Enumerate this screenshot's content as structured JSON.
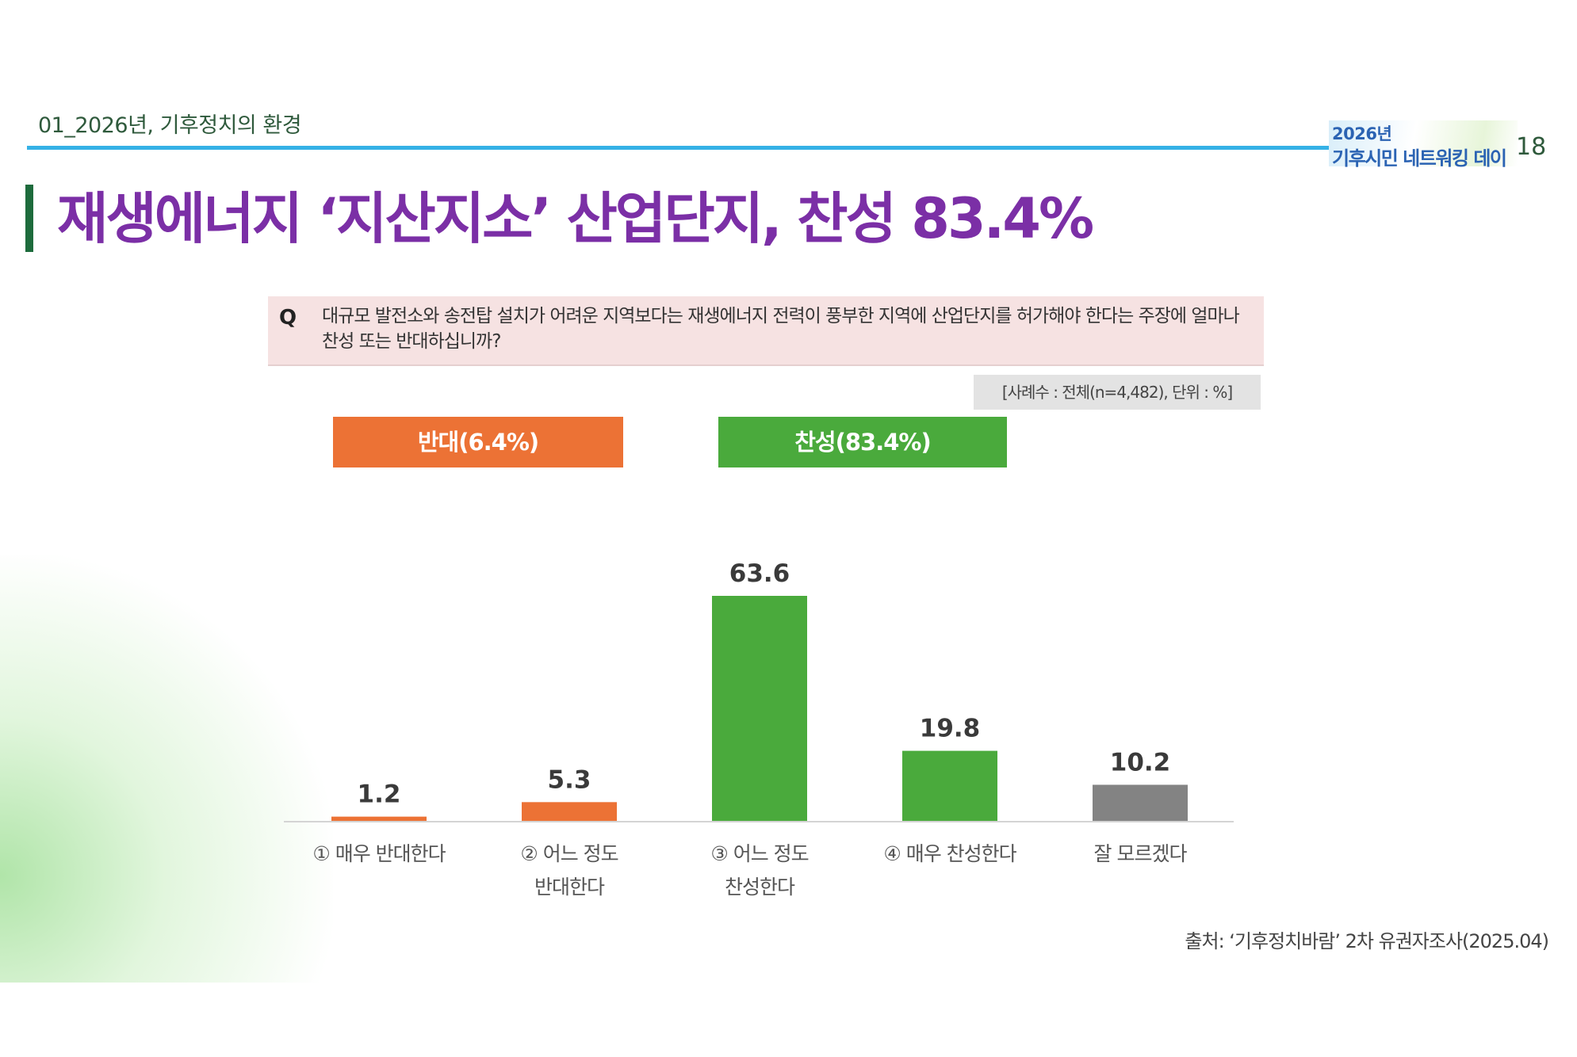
{
  "header": {
    "section_label": "01_2026년, 기후정치의 환경",
    "brand_line1": "2026년",
    "brand_line2": "기후시민 네트워킹 데이",
    "page_number": "18"
  },
  "title": "재생에너지 ‘지산지소’ 산업단지, 찬성 83.4%",
  "question": {
    "q_mark": "Q",
    "text": "대규모 발전소와 송전탑 설치가 어려운 지역보다는 재생에너지 전력이 풍부한 지역에 산업단지를 허가해야 한다는 주장에 얼마나 찬성 또는 반대하십니까?"
  },
  "sample_note": "[사례수 : 전체(n=4,482), 단위 : %]",
  "summary": {
    "oppose_label": "반대(6.4%)",
    "support_label": "찬성(83.4%)"
  },
  "colors": {
    "oppose": "#ec7235",
    "support": "#4aaa3c",
    "unknown": "#838383",
    "title": "#7b2fa6",
    "accent_rule": "#35b1e6"
  },
  "chart_data": {
    "type": "bar",
    "categories": [
      "① 매우 반대한다",
      "② 어느 정도 반대한다",
      "③ 어느 정도 찬성한다",
      "④ 매우 찬성한다",
      "잘 모르겠다"
    ],
    "category_lines": [
      [
        "① 매우 반대한다"
      ],
      [
        "② 어느 정도",
        "반대한다"
      ],
      [
        "③ 어느 정도",
        "찬성한다"
      ],
      [
        "④ 매우 찬성한다"
      ],
      [
        "잘 모르겠다"
      ]
    ],
    "values": [
      1.2,
      5.3,
      63.6,
      19.8,
      10.2
    ],
    "value_labels": [
      "1.2",
      "5.3",
      "63.6",
      "19.8",
      "10.2"
    ],
    "groups": [
      "oppose",
      "oppose",
      "support",
      "support",
      "unknown"
    ],
    "ylim": [
      0,
      63.6
    ],
    "unit": "%",
    "grid": false
  },
  "source": "출처: ‘기후정치바람’ 2차 유권자조사(2025.04)"
}
